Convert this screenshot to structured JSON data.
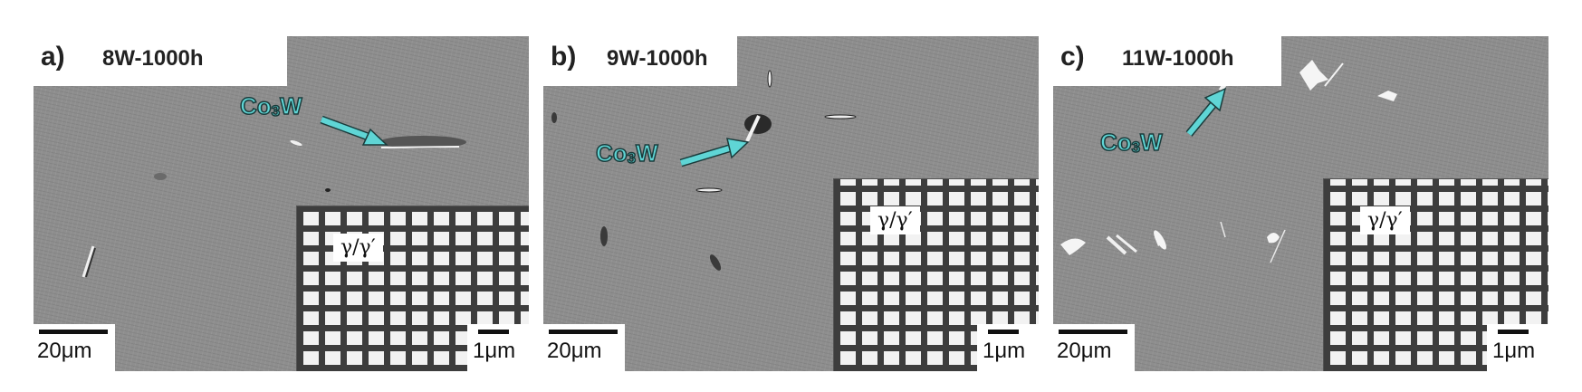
{
  "panels": [
    {
      "letter": "a)",
      "title": "8W-1000h",
      "annotation_main": "Co",
      "annotation_sub": "3",
      "annotation_tail": "W",
      "phase_label": "γ/γ′",
      "scale_large": "20μm",
      "scale_small": "1μm"
    },
    {
      "letter": "b)",
      "title": "9W-1000h",
      "annotation_main": "Co",
      "annotation_sub": "3",
      "annotation_tail": "W",
      "phase_label": "γ/γ′",
      "scale_large": "20μm",
      "scale_small": "1μm"
    },
    {
      "letter": "c)",
      "title": "11W-1000h",
      "annotation_main": "Co",
      "annotation_sub": "3",
      "annotation_tail": "W",
      "phase_label": "γ/γ′",
      "scale_large": "20μm",
      "scale_small": "1μm"
    }
  ],
  "colors": {
    "arrow": "#5fd5d5",
    "arrow_outline": "#1a3b3b",
    "background_matrix": "#8e8e8e"
  }
}
